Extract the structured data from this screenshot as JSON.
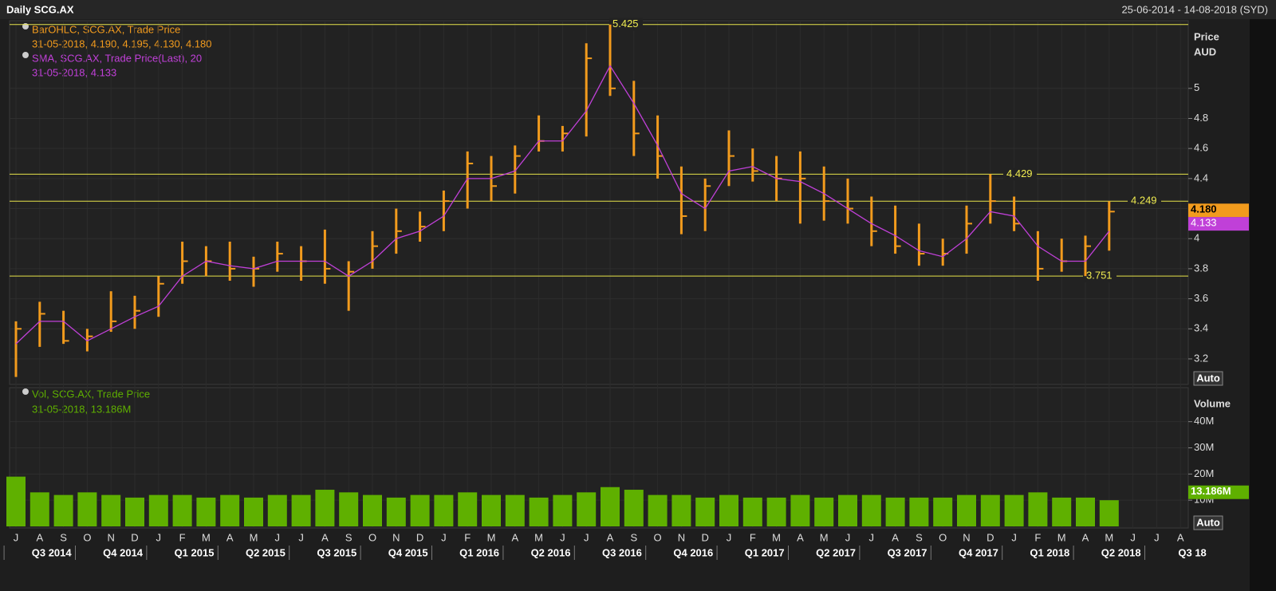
{
  "chart_data": {
    "type": "ohlc",
    "title": "Daily SCG.AX",
    "date_range": "25-06-2014 - 14-08-2018 (SYD)",
    "categories": [
      "J",
      "A",
      "S",
      "O",
      "N",
      "D",
      "J",
      "F",
      "M",
      "A",
      "M",
      "J",
      "J",
      "A",
      "S",
      "O",
      "N",
      "D",
      "J",
      "F",
      "M",
      "A",
      "M",
      "J",
      "J",
      "A",
      "S",
      "O",
      "N",
      "D",
      "J",
      "F",
      "M",
      "A",
      "M",
      "J",
      "J",
      "A",
      "S",
      "O",
      "N",
      "D",
      "J",
      "F",
      "M",
      "A",
      "M",
      "J",
      "J",
      "A"
    ],
    "quarters": [
      "Q3 2014",
      "Q4 2014",
      "Q1 2015",
      "Q2 2015",
      "Q3 2015",
      "Q4 2015",
      "Q1 2016",
      "Q2 2016",
      "Q3 2016",
      "Q4 2016",
      "Q1 2017",
      "Q2 2017",
      "Q3 2017",
      "Q4 2017",
      "Q1 2018",
      "Q2 2018",
      "Q3 18"
    ],
    "price": {
      "axis_title": "Price",
      "axis_unit": "AUD",
      "auto": "Auto",
      "ylim": [
        3.03,
        5.45
      ],
      "yticks": [
        3.2,
        3.4,
        3.6,
        3.8,
        4,
        4.2,
        4.4,
        4.6,
        4.8,
        5
      ],
      "legend": [
        "BarOHLC, SCG.AX, Trade Price",
        "31-05-2018, 4.190, 4.195, 4.130, 4.180",
        "SMA, SCG.AX, Trade Price(Last),  20",
        "31-05-2018, 4.133"
      ],
      "series": [
        {
          "name": "BarOHLC",
          "color": "#f29b1d",
          "high": [
            3.45,
            3.58,
            3.52,
            3.4,
            3.65,
            3.62,
            3.75,
            3.98,
            3.95,
            3.98,
            3.88,
            3.98,
            3.95,
            4.06,
            3.85,
            4.05,
            4.2,
            4.18,
            4.32,
            4.58,
            4.55,
            4.62,
            4.82,
            4.75,
            5.3,
            5.425,
            5.05,
            4.82,
            4.48,
            4.4,
            4.72,
            4.6,
            4.55,
            4.58,
            4.48,
            4.4,
            4.28,
            4.22,
            4.1,
            4,
            4.22,
            4.429,
            4.28,
            4.05,
            4,
            4.02,
            4.249,
            null,
            null,
            null
          ],
          "low": [
            3.08,
            3.28,
            3.3,
            3.25,
            3.38,
            3.4,
            3.48,
            3.7,
            3.75,
            3.72,
            3.68,
            3.78,
            3.72,
            3.7,
            3.52,
            3.8,
            3.9,
            3.98,
            4.05,
            4.2,
            4.25,
            4.3,
            4.58,
            4.58,
            4.68,
            4.95,
            4.55,
            4.4,
            4.03,
            4.05,
            4.35,
            4.38,
            4.25,
            4.1,
            4.12,
            4.1,
            3.95,
            3.9,
            3.82,
            3.82,
            3.9,
            4.1,
            4.05,
            3.72,
            3.78,
            3.751,
            3.92,
            null,
            null,
            null
          ],
          "close": [
            3.4,
            3.5,
            3.32,
            3.35,
            3.45,
            3.52,
            3.7,
            3.85,
            3.85,
            3.8,
            3.8,
            3.9,
            3.85,
            3.8,
            3.78,
            3.95,
            4.05,
            4.08,
            4.25,
            4.5,
            4.35,
            4.55,
            4.65,
            4.7,
            5.2,
            5,
            4.7,
            4.55,
            4.15,
            4.35,
            4.55,
            4.45,
            4.4,
            4.4,
            4.25,
            4.2,
            4.05,
            3.95,
            3.9,
            3.9,
            4.1,
            4.25,
            4.1,
            3.8,
            3.85,
            3.95,
            4.18,
            null,
            null,
            null
          ]
        },
        {
          "name": "SMA",
          "color": "#c040d8",
          "values": [
            3.3,
            3.45,
            3.45,
            3.32,
            3.4,
            3.48,
            3.55,
            3.75,
            3.85,
            3.82,
            3.8,
            3.85,
            3.85,
            3.85,
            3.75,
            3.85,
            4,
            4.05,
            4.15,
            4.4,
            4.4,
            4.45,
            4.65,
            4.65,
            4.85,
            5.15,
            4.9,
            4.62,
            4.3,
            4.2,
            4.45,
            4.48,
            4.4,
            4.38,
            4.3,
            4.2,
            4.1,
            4.02,
            3.92,
            3.88,
            4,
            4.18,
            4.15,
            3.95,
            3.85,
            3.85,
            4.05,
            null,
            null,
            null
          ]
        }
      ],
      "levels": [
        5.425,
        4.429,
        4.249,
        3.751
      ],
      "badges": [
        {
          "value": 4.18,
          "label": "4.180",
          "color": "#f29b1d"
        },
        {
          "value": 4.133,
          "label": "4.133",
          "color": "#c040d8"
        }
      ]
    },
    "volume": {
      "axis_title": "Volume",
      "auto": "Auto",
      "ylim": [
        0,
        53000000
      ],
      "yticks": [
        {
          "value": 10000000,
          "label": "10M"
        },
        {
          "value": 20000000,
          "label": "20M"
        },
        {
          "value": 30000000,
          "label": "30M"
        },
        {
          "value": 40000000,
          "label": "40M"
        }
      ],
      "legend": [
        "Vol, SCG.AX, Trade Price",
        "31-05-2018, 13.186M"
      ],
      "color": "#5fb000",
      "values": [
        19000000,
        13000000,
        12000000,
        13000000,
        12000000,
        11000000,
        12000000,
        12000000,
        11000000,
        12000000,
        11000000,
        12000000,
        12000000,
        14000000,
        13000000,
        12000000,
        11000000,
        12000000,
        12000000,
        13000000,
        12000000,
        12000000,
        11000000,
        12000000,
        13000000,
        15000000,
        14000000,
        12000000,
        12000000,
        11000000,
        12000000,
        11000000,
        11000000,
        12000000,
        11000000,
        12000000,
        12000000,
        11000000,
        11000000,
        11000000,
        12000000,
        12000000,
        12000000,
        13000000,
        11000000,
        11000000,
        10000000,
        null,
        null,
        null
      ],
      "badge": {
        "value": 13186000,
        "label": "13.186M"
      }
    }
  }
}
